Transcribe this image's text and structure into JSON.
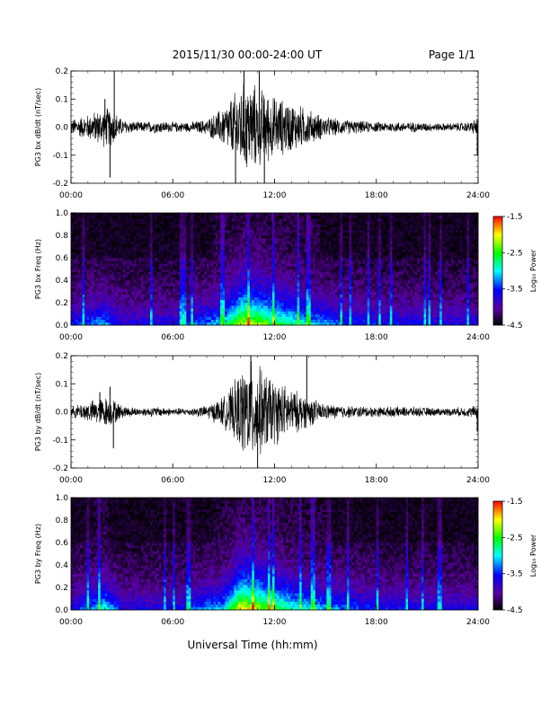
{
  "header": {
    "title": "2015/11/30  00:00-24:00 UT",
    "page": "Page 1/1"
  },
  "footer": {
    "xlabel": "Universal Time (hh:mm)"
  },
  "colors": {
    "trace": "#000000",
    "colormap": [
      "#000000",
      "#5a00a0",
      "#0000ff",
      "#00ffff",
      "#00ff00",
      "#ffff00",
      "#ff0000"
    ]
  },
  "chart_data": [
    {
      "type": "line",
      "ylabel": "PG3 bx dB/dt (nT/sec)",
      "xlim": [
        0,
        24
      ],
      "ylim": [
        -0.2,
        0.2
      ],
      "x_ticks": [
        "00:00",
        "06:00",
        "12:00",
        "18:00",
        "24:00"
      ],
      "y_ticks": [
        "-0.2",
        "-0.1",
        "0.0",
        "0.1",
        "0.2"
      ],
      "envelope": {
        "x_hours": [
          0,
          1,
          2,
          2.5,
          3,
          4,
          5,
          6,
          7,
          8,
          9,
          9.5,
          10,
          10.5,
          11,
          12,
          13,
          14,
          15,
          16,
          18,
          20,
          22,
          23.5,
          24
        ],
        "amplitude": [
          0.03,
          0.05,
          0.08,
          0.07,
          0.03,
          0.02,
          0.025,
          0.02,
          0.02,
          0.03,
          0.08,
          0.12,
          0.17,
          0.18,
          0.16,
          0.12,
          0.1,
          0.07,
          0.04,
          0.03,
          0.02,
          0.02,
          0.015,
          0.02,
          0.04
        ]
      },
      "spikes": [
        {
          "x": 2.0,
          "y": 0.1
        },
        {
          "x": 2.3,
          "y": -0.18
        },
        {
          "x": 2.55,
          "y": 0.2
        },
        {
          "x": 9.7,
          "y": -0.2
        },
        {
          "x": 10.2,
          "y": 0.2
        },
        {
          "x": 11.1,
          "y": 0.2
        },
        {
          "x": 11.4,
          "y": -0.2
        },
        {
          "x": 23.95,
          "y": -0.1
        }
      ]
    },
    {
      "type": "heatmap",
      "ylabel": "PG3 bx Freq (Hz)",
      "colorbar_label": "Log₁₀ Power",
      "xlim": [
        0,
        24
      ],
      "ylim": [
        0,
        1.0
      ],
      "x_ticks": [
        "00:00",
        "06:00",
        "12:00",
        "18:00",
        "24:00"
      ],
      "y_ticks": [
        "0.0",
        "0.2",
        "0.4",
        "0.6",
        "0.8",
        "1.0"
      ],
      "colorbar_ticks": [
        "-1.5",
        "-2.5",
        "-3.5",
        "-4.5"
      ],
      "color_range": [
        -4.5,
        -1.5
      ],
      "activity_x_hours": [
        0,
        2,
        3,
        6,
        9,
        10,
        11,
        12,
        14,
        16,
        18,
        24
      ],
      "activity_level": [
        0.35,
        0.5,
        0.3,
        0.3,
        0.55,
        0.95,
        0.9,
        0.75,
        0.55,
        0.4,
        0.35,
        0.3
      ]
    },
    {
      "type": "line",
      "ylabel": "PG3 by dB/dt (nT/sec)",
      "xlim": [
        0,
        24
      ],
      "ylim": [
        -0.2,
        0.2
      ],
      "x_ticks": [
        "00:00",
        "06:00",
        "12:00",
        "18:00",
        "24:00"
      ],
      "y_ticks": [
        "-0.2",
        "-0.1",
        "0.0",
        "0.1",
        "0.2"
      ],
      "envelope": {
        "x_hours": [
          0,
          1,
          2,
          2.5,
          3,
          4,
          5,
          6,
          7,
          8,
          9,
          9.5,
          10,
          10.5,
          11,
          12,
          13,
          14,
          15,
          16,
          18,
          20,
          22,
          23.5,
          24
        ],
        "amplitude": [
          0.02,
          0.04,
          0.06,
          0.05,
          0.025,
          0.015,
          0.02,
          0.015,
          0.015,
          0.025,
          0.06,
          0.1,
          0.16,
          0.2,
          0.18,
          0.13,
          0.09,
          0.06,
          0.03,
          0.025,
          0.02,
          0.02,
          0.015,
          0.02,
          0.03
        ]
      },
      "spikes": [
        {
          "x": 1.7,
          "y": 0.07
        },
        {
          "x": 2.3,
          "y": 0.09
        },
        {
          "x": 2.5,
          "y": -0.13
        },
        {
          "x": 10.6,
          "y": 0.2
        },
        {
          "x": 11.0,
          "y": -0.2
        },
        {
          "x": 13.9,
          "y": 0.2
        },
        {
          "x": 23.95,
          "y": -0.07
        }
      ]
    },
    {
      "type": "heatmap",
      "ylabel": "PG3 by Freq (Hz)",
      "colorbar_label": "Log₁₀ Power",
      "xlim": [
        0,
        24
      ],
      "ylim": [
        0,
        1.0
      ],
      "x_ticks": [
        "00:00",
        "06:00",
        "12:00",
        "18:00",
        "24:00"
      ],
      "y_ticks": [
        "0.0",
        "0.2",
        "0.4",
        "0.6",
        "0.8",
        "1.0"
      ],
      "colorbar_ticks": [
        "-1.5",
        "-2.5",
        "-3.5",
        "-4.5"
      ],
      "color_range": [
        -4.5,
        -1.5
      ],
      "activity_x_hours": [
        0,
        2,
        3,
        6,
        9,
        10,
        11,
        12,
        14,
        16,
        18,
        24
      ],
      "activity_level": [
        0.3,
        0.6,
        0.3,
        0.3,
        0.55,
        1.0,
        0.9,
        0.75,
        0.55,
        0.45,
        0.35,
        0.3
      ]
    }
  ]
}
